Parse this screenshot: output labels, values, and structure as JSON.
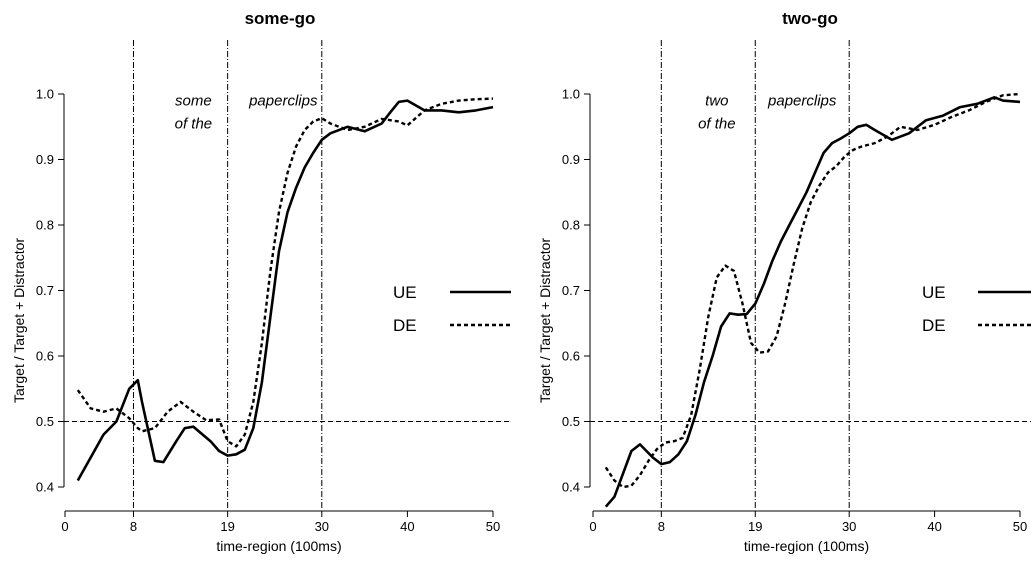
{
  "chart_data": [
    {
      "type": "line",
      "title": "some-go",
      "xlabel": "time-region (100ms)",
      "ylabel": "Target / Target + Distractor",
      "xlim": [
        0,
        50
      ],
      "ylim": [
        0.4,
        1.0
      ],
      "xticks": [
        0,
        8,
        19,
        30,
        40,
        50
      ],
      "yticks": [
        0.4,
        0.5,
        0.6,
        0.7,
        0.8,
        0.9,
        1.0
      ],
      "vlines": [
        8,
        19,
        30
      ],
      "hline": 0.5,
      "annotations": [
        {
          "text": "some",
          "x": 15,
          "y": 0.99
        },
        {
          "text": "of the",
          "x": 15,
          "y": 0.955
        },
        {
          "text": "paperclips",
          "x": 25.5,
          "y": 0.99
        }
      ],
      "legend_position": "right",
      "series": [
        {
          "name": "UE",
          "style": "solid",
          "x": [
            1.5,
            3,
            4.5,
            6,
            7.5,
            8.5,
            9,
            10.5,
            11.5,
            13,
            14,
            15,
            17,
            18,
            19,
            20,
            21,
            22,
            23,
            24,
            25,
            26,
            27,
            28,
            29,
            30,
            31,
            33,
            35,
            37,
            38,
            39,
            40,
            42,
            44,
            46,
            48,
            50
          ],
          "y": [
            0.41,
            0.445,
            0.48,
            0.5,
            0.55,
            0.563,
            0.53,
            0.44,
            0.438,
            0.47,
            0.49,
            0.492,
            0.47,
            0.455,
            0.448,
            0.45,
            0.457,
            0.49,
            0.56,
            0.66,
            0.76,
            0.82,
            0.857,
            0.888,
            0.91,
            0.93,
            0.94,
            0.95,
            0.943,
            0.955,
            0.972,
            0.988,
            0.99,
            0.975,
            0.975,
            0.972,
            0.975,
            0.98
          ]
        },
        {
          "name": "DE",
          "style": "dashed",
          "x": [
            1.5,
            3,
            4.5,
            6,
            7.5,
            8.5,
            9,
            10.5,
            12,
            13.5,
            15,
            16.5,
            18,
            19,
            20,
            21,
            22,
            23,
            24,
            25,
            26,
            27,
            28,
            29,
            30,
            31,
            33,
            35,
            37,
            39,
            40,
            42,
            44,
            46,
            48,
            50
          ],
          "y": [
            0.548,
            0.52,
            0.515,
            0.52,
            0.505,
            0.49,
            0.485,
            0.49,
            0.515,
            0.53,
            0.515,
            0.502,
            0.503,
            0.47,
            0.462,
            0.48,
            0.53,
            0.62,
            0.73,
            0.82,
            0.88,
            0.92,
            0.945,
            0.958,
            0.963,
            0.955,
            0.945,
            0.95,
            0.962,
            0.958,
            0.952,
            0.975,
            0.985,
            0.99,
            0.992,
            0.993
          ]
        }
      ]
    },
    {
      "type": "line",
      "title": "two-go",
      "xlabel": "time-region (100ms)",
      "ylabel": "Target / Target + Distractor",
      "xlim": [
        0,
        50
      ],
      "ylim": [
        0.4,
        1.0
      ],
      "xticks": [
        0,
        8,
        19,
        30,
        40,
        50
      ],
      "yticks": [
        0.4,
        0.5,
        0.6,
        0.7,
        0.8,
        0.9,
        1.0
      ],
      "vlines": [
        8,
        19,
        30
      ],
      "hline": 0.5,
      "annotations": [
        {
          "text": "two",
          "x": 14.5,
          "y": 0.99
        },
        {
          "text": "of the",
          "x": 14.5,
          "y": 0.955
        },
        {
          "text": "paperclips",
          "x": 24.5,
          "y": 0.99
        }
      ],
      "legend_position": "right",
      "series": [
        {
          "name": "UE",
          "style": "solid",
          "x": [
            1.5,
            2.5,
            3.5,
            4.5,
            5.5,
            7,
            8,
            9,
            10,
            11,
            12,
            13,
            14,
            15,
            16,
            17,
            18,
            19,
            20,
            21,
            22,
            23,
            24,
            25,
            26,
            27,
            28,
            29,
            30,
            31,
            32,
            33,
            35,
            37,
            39,
            41,
            43,
            45,
            47,
            48,
            50
          ],
          "y": [
            0.37,
            0.385,
            0.42,
            0.455,
            0.465,
            0.445,
            0.435,
            0.438,
            0.45,
            0.47,
            0.51,
            0.56,
            0.6,
            0.645,
            0.665,
            0.663,
            0.664,
            0.68,
            0.71,
            0.745,
            0.775,
            0.8,
            0.825,
            0.85,
            0.88,
            0.91,
            0.925,
            0.932,
            0.94,
            0.95,
            0.953,
            0.945,
            0.93,
            0.94,
            0.96,
            0.967,
            0.98,
            0.985,
            0.995,
            0.99,
            0.988
          ]
        },
        {
          "name": "DE",
          "style": "dashed",
          "x": [
            1.5,
            2.5,
            3.5,
            4.5,
            5.5,
            6.5,
            7.5,
            8.5,
            9.5,
            10.5,
            11.5,
            12.5,
            13.5,
            14.5,
            15.5,
            16.5,
            17.5,
            18.5,
            19.5,
            20.5,
            21.5,
            22.5,
            23.5,
            24.5,
            25.5,
            26.5,
            27.5,
            28.5,
            29.5,
            30.5,
            31.5,
            33,
            34.5,
            36,
            38,
            40,
            42,
            44,
            46,
            48,
            50
          ],
          "y": [
            0.43,
            0.41,
            0.4,
            0.402,
            0.418,
            0.44,
            0.458,
            0.468,
            0.47,
            0.475,
            0.51,
            0.58,
            0.66,
            0.72,
            0.738,
            0.73,
            0.68,
            0.62,
            0.605,
            0.607,
            0.63,
            0.68,
            0.74,
            0.795,
            0.835,
            0.86,
            0.88,
            0.89,
            0.905,
            0.915,
            0.92,
            0.925,
            0.935,
            0.95,
            0.945,
            0.953,
            0.965,
            0.975,
            0.988,
            0.998,
            1.0
          ]
        }
      ]
    }
  ]
}
